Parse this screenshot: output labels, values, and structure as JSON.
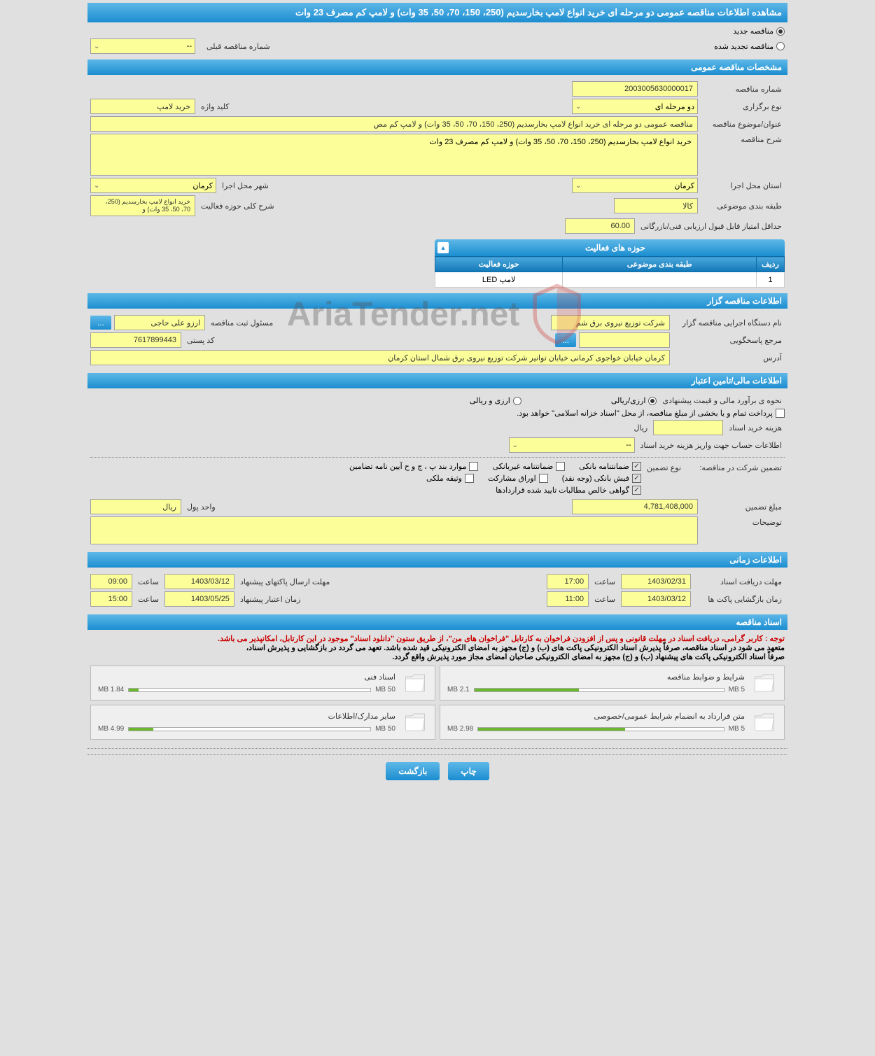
{
  "page_title": "مشاهده اطلاعات مناقصه عمومی دو مرحله ای خرید انواع لامپ بخارسدیم (250، 150، 70، 50، 35 وات) و لامپ کم مصرف 23 وات",
  "radio_options": {
    "new_tender": "مناقصه جدید",
    "renewed_tender": "مناقصه تجدید شده"
  },
  "prev_tender": {
    "label": "شماره مناقصه قبلی",
    "value": "--"
  },
  "sections": {
    "general": "مشخصات مناقصه عمومی",
    "organizer": "اطلاعات مناقصه گزار",
    "financial": "اطلاعات مالی/تامین اعتبار",
    "timing": "اطلاعات زمانی",
    "documents": "اسناد مناقصه"
  },
  "general": {
    "tender_no_label": "شماره مناقصه",
    "tender_no": "2003005630000017",
    "type_label": "نوع برگزاری",
    "type": "دو مرحله ای",
    "keyword_label": "کلید واژه",
    "keyword": "خرید لامپ",
    "subject_label": "عنوان/موضوع مناقصه",
    "subject": "مناقصه عمومی دو مرحله ای خرید انواع لامپ بخارسدیم (250، 150، 70، 50، 35 وات) و لامپ کم مص",
    "desc_label": "شرح مناقصه",
    "desc": "خرید انواع لامپ بخارسدیم (250، 150، 70، 50، 35 وات) و لامپ کم مصرف 23 وات",
    "province_label": "استان محل اجرا",
    "province": "کرمان",
    "city_label": "شهر محل اجرا",
    "city": "کرمان",
    "category_label": "طبقه بندی موضوعی",
    "category": "کالا",
    "scope_label": "شرح کلی حوزه فعالیت",
    "scope": "خرید انواع لامپ بخارسدیم (250، 70، 50، 35 وات) و",
    "min_score_label": "حداقل امتیاز قابل قبول ارزیابی فنی/بازرگانی",
    "min_score": "60.00"
  },
  "activity_panel": {
    "title": "حوزه های فعالیت",
    "col_row": "ردیف",
    "col_category": "طبقه بندی موضوعی",
    "col_scope": "حوزه فعالیت",
    "row_num": "1",
    "row_scope": "لامپ LED"
  },
  "organizer": {
    "exec_label": "نام دستگاه اجرایی مناقصه گزار",
    "exec": "شرکت توزیع نیروی برق شم",
    "resp_label": "مسئول ثبت مناقصه",
    "resp": "ارزو علی حاجی",
    "contact_label": "مرجع پاسخگویی",
    "contact": "",
    "postal_label": "کد پستی",
    "postal": "7617899443",
    "addr_label": "آدرس",
    "addr": "کرمان خیابان خواجوی کرمانی خیابان توانیر شرکت توزیع نیروی برق شمال استان کرمان"
  },
  "financial": {
    "method_label": "نحوه ی برآورد مالی و قیمت پیشنهادی",
    "opt_rial": "ارزی/ریالی",
    "opt_forex": "ارزی و ریالی",
    "treasury_note": "پرداخت تمام و یا بخشی از مبلغ مناقصه، از محل \"اسناد خزانه اسلامی\" خواهد بود.",
    "cost_label": "هزینه خرید اسناد",
    "cost": "",
    "cost_unit": "ریال",
    "account_label": "اطلاعات حساب جهت واریز هزینه خرید اسناد",
    "account": "--",
    "guarantee_label": "تضمین شرکت در مناقصه:",
    "guarantee_type_label": "نوع تضمین",
    "chk_bank_guarantee": "ضمانتنامه بانکی",
    "chk_nonbank_guarantee": "ضمانتنامه غیربانکی",
    "chk_cases": "موارد بند پ ، ج و ح آیین نامه تضامین",
    "chk_bank_receipt": "فیش بانکی (وجه نقد)",
    "chk_participation": "اوراق مشارکت",
    "chk_property": "وثیقه ملکی",
    "chk_certificate": "گواهی خالص مطالبات تایید شده قراردادها",
    "amount_label": "مبلغ تضمین",
    "amount": "4,781,408,000",
    "unit_label": "واحد پول",
    "unit": "ریال",
    "notes_label": "توضیحات"
  },
  "timing": {
    "receive_label": "مهلت دریافت اسناد",
    "receive_date": "1403/02/31",
    "receive_time": "17:00",
    "send_label": "مهلت ارسال پاکتهای پیشنهاد",
    "send_date": "1403/03/12",
    "send_time": "09:00",
    "open_label": "زمان بازگشایی پاکت ها",
    "open_date": "1403/03/12",
    "open_time": "11:00",
    "validity_label": "زمان اعتبار پیشنهاد",
    "validity_date": "1403/05/25",
    "validity_time": "15:00",
    "time_word": "ساعت"
  },
  "docs": {
    "note1": "توجه : کاربر گرامی، دریافت اسناد در مهلت قانونی و پس از افزودن فراخوان به کارتابل \"فراخوان های من\"، از طریق ستون \"دانلود اسناد\" موجود در این کارتابل، امکانپذیر می باشد.",
    "note2": "متعهد می شود در اسناد مناقصه، صرفاً پذیرش اسناد الکترونیکی پاکت های (ب) و (ج) مجهز به امضای الکترونیکی قید شده باشد. تعهد می گردد در بازگشایی و پذیرش اسناد،",
    "note3": "صرفاً اسناد الکترونیکی پاکت های پیشنهاد (ب) و (ج) مجهز به امضای الکترونیکی صاحبان امضای مجاز مورد پذیرش واقع گردد.",
    "items": [
      {
        "title": "شرایط و ضوابط مناقصه",
        "size": "2.1 MB",
        "max": "5 MB",
        "pct": 42
      },
      {
        "title": "اسناد فنی",
        "size": "1.84 MB",
        "max": "50 MB",
        "pct": 4
      },
      {
        "title": "متن قرارداد به انضمام شرایط عمومی/خصوصی",
        "size": "2.98 MB",
        "max": "5 MB",
        "pct": 60
      },
      {
        "title": "سایر مدارک/اطلاعات",
        "size": "4.99 MB",
        "max": "50 MB",
        "pct": 10
      }
    ]
  },
  "buttons": {
    "print": "چاپ",
    "back": "بازگشت",
    "dots": "..."
  },
  "watermark": "AriaTender.net",
  "colors": {
    "header_bg": "#1b8dd0",
    "field_bg": "#fcff99",
    "progress": "#6bb82f"
  }
}
